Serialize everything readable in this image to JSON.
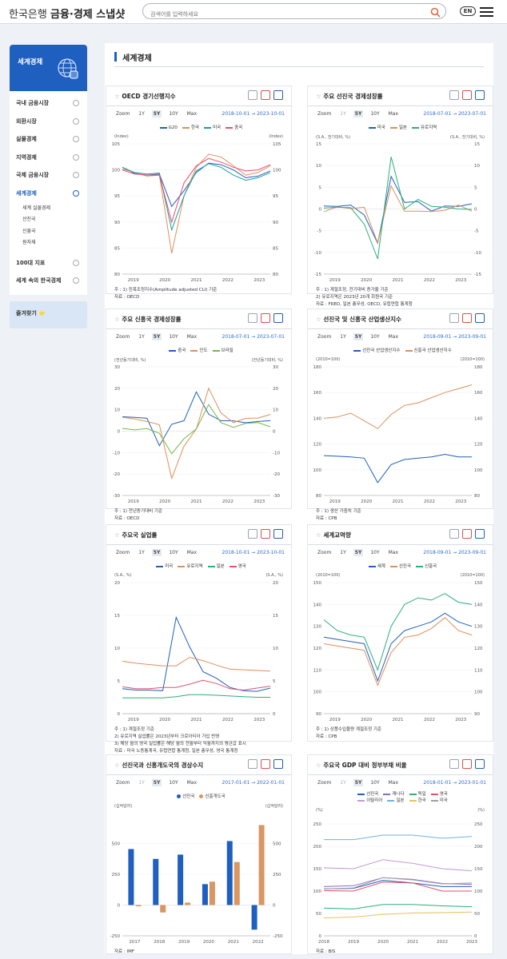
{
  "header": {
    "bank": "한국은행",
    "app": "금융·경제 스냅샷",
    "search_placeholder": "검색어를 입력하세요",
    "lang": "EN"
  },
  "sidebar": {
    "title": "세계경제",
    "items": [
      "국내 금융시장",
      "외환시장",
      "실물경제",
      "지역경제",
      "국제 금융시장",
      "세계경제",
      "100대 지표",
      "세계 속의 한국경제"
    ],
    "active_index": 5,
    "sub_items": [
      "세계 실물경제",
      "선진국",
      "신흥국",
      "원자재"
    ],
    "favorites": "즐겨찾기 ⭐"
  },
  "page_title": "세계경제",
  "colors": {
    "g20": "#1f5fbf",
    "korea": "#e08f5a",
    "us": "#1a9e9e",
    "china": "#e6506e",
    "brazil": "#7ab648",
    "eu": "#2ab07a"
  },
  "cards": [
    {
      "title": "OECD 경기선행지수",
      "tabs": [
        "Zoom",
        "1Y",
        "5Y",
        "10Y",
        "Max"
      ],
      "tab_on": 2,
      "dates": "2018-10-01 → 2023-10-01",
      "legend": [
        "G20",
        "한국",
        "미국",
        "중국"
      ],
      "unit_left": "(Index)",
      "unit_right": "(Index)",
      "notes": [
        "주 : 1) 진폭조정지수(Amplitude adjusted CLI) 기준",
        "자료 : OECD"
      ]
    },
    {
      "title": "주요 선진국 경제성장률",
      "tabs": [
        "Zoom",
        "1Y",
        "5Y",
        "10Y",
        "Max"
      ],
      "tab_on": 2,
      "dates": "2018-07-01 → 2023-07-01",
      "legend": [
        "미국",
        "일본",
        "유로지역"
      ],
      "unit_left": "(S.A., 전기대비, %)",
      "unit_right": "(S.A., 전기대비, %)",
      "notes": [
        "주 : 1) 계절조정, 전기대비 증가율 기준",
        "      2) 유로지역은 2023년 20개 회원국 기준",
        "자료 : FRED, 일본 총무성, OECD, 유럽연합 통계청"
      ]
    },
    {
      "title": "주요 신흥국 경제성장률",
      "tabs": [
        "Zoom",
        "1Y",
        "5Y",
        "10Y",
        "Max"
      ],
      "tab_on": 2,
      "dates": "2018-07-01 → 2023-07-01",
      "legend": [
        "중국",
        "인도",
        "브라질"
      ],
      "unit_left": "(전년동기대비, %)",
      "unit_right": "(전년동기대비, %)",
      "notes": [
        "주 : 1) 전년동기대비 기준",
        "자료 : OECD"
      ]
    },
    {
      "title": "선진국 및 신흥국 산업생산지수",
      "tabs": [
        "Zoom",
        "1Y",
        "5Y",
        "10Y",
        "Max"
      ],
      "tab_on": 2,
      "dates": "2018-09-01 → 2023-09-01",
      "legend": [
        "선진국 산업생산지수",
        "신흥국 산업생산지수"
      ],
      "unit_left": "(2010=100)",
      "unit_right": "(2010=100)",
      "notes": [
        "주 : 1) 생산 가중치 기준",
        "자료 : CPB"
      ]
    },
    {
      "title": "주요국 실업률",
      "tabs": [
        "Zoom",
        "1Y",
        "5Y",
        "10Y",
        "Max"
      ],
      "tab_on": 2,
      "dates": "2018-10-01 → 2023-10-01",
      "legend": [
        "미국",
        "유로지역",
        "일본",
        "영국"
      ],
      "unit_left": "(S.A., %)",
      "unit_right": "(S.A., %)",
      "notes": [
        "주 : 1) 계절조정 기준",
        "      2) 유로지역 실업률은 2023년부터 크로아티아 가입 반영",
        "      3) 해당 월의 영국 실업률은 해당 월의 전월부터 익월까지의 평균값 표시",
        "자료 : 미국 노동통계국, 유럽연합 통계청, 일본 총무성, 영국 통계청"
      ]
    },
    {
      "title": "세계교역량",
      "tabs": [
        "Zoom",
        "1Y",
        "5Y",
        "10Y",
        "Max"
      ],
      "tab_on": 2,
      "dates": "2018-09-01 → 2023-09-01",
      "legend": [
        "세계",
        "선진국",
        "신흥국"
      ],
      "unit_left": "(2010=100)",
      "unit_right": "(2010=100)",
      "notes": [
        "주 : 1) 상품수입물량 계절조정 기준",
        "자료 : CPB"
      ]
    },
    {
      "title": "선진국과 신흥개도국의 경상수지",
      "tabs": [
        "Zoom",
        "1Y",
        "5Y",
        "10Y",
        "Max"
      ],
      "tab_on": 2,
      "dates": "2017-01-01 → 2022-01-01",
      "legend": [
        "선진국",
        "신흥개도국"
      ],
      "unit_left": "(십억달러)",
      "unit_right": "(십억달러)",
      "notes": [
        "자료 : IMF"
      ]
    },
    {
      "title": "주요국 GDP 대비 정부부채 비율",
      "tabs": [
        "Zoom",
        "1Y",
        "5Y",
        "10Y",
        "Max"
      ],
      "tab_on": 2,
      "dates": "2018-01-01 → 2023-01-01",
      "legend": [
        "선진국",
        "캐나다",
        "독일",
        "영국",
        "이탈리아",
        "일본",
        "한국",
        "미국"
      ],
      "unit_left": "(%)",
      "unit_right": "(%)",
      "notes": [
        "자료 : BIS"
      ]
    }
  ],
  "chart_data": [
    {
      "type": "line",
      "title": "OECD 경기선행지수",
      "x": [
        "2018-10",
        "2019-04",
        "2019-10",
        "2020-02",
        "2020-04",
        "2020-06",
        "2020-10",
        "2021-04",
        "2021-10",
        "2022-04",
        "2022-10",
        "2023-04",
        "2023-10"
      ],
      "xticks": [
        "2019",
        "2020",
        "2021",
        "2022",
        "2023"
      ],
      "ylim": [
        80,
        105
      ],
      "yticks": [
        80,
        85,
        90,
        95,
        100,
        105
      ],
      "series": [
        {
          "name": "G20",
          "values": [
            100.5,
            99.3,
            99.0,
            99.2,
            93.0,
            96.0,
            99.5,
            101.3,
            101.0,
            100.0,
            98.5,
            98.8,
            99.8
          ]
        },
        {
          "name": "한국",
          "values": [
            100.2,
            99.5,
            98.8,
            99.0,
            84.0,
            95.0,
            100.5,
            103.0,
            102.5,
            100.8,
            99.0,
            99.5,
            100.8
          ]
        },
        {
          "name": "미국",
          "values": [
            100.5,
            99.5,
            99.2,
            99.4,
            88.5,
            95.0,
            99.8,
            101.2,
            100.5,
            99.0,
            98.0,
            98.5,
            99.5
          ]
        },
        {
          "name": "중국",
          "values": [
            100.0,
            99.2,
            99.0,
            99.0,
            90.0,
            97.5,
            100.8,
            102.2,
            101.5,
            100.5,
            99.8,
            100.0,
            101.0
          ]
        }
      ]
    },
    {
      "type": "line",
      "title": "주요 선진국 경제성장률",
      "x": [
        "2018-07",
        "2019-01",
        "2019-07",
        "2020-01",
        "2020-04",
        "2020-07",
        "2021-01",
        "2021-07",
        "2022-01",
        "2022-07",
        "2023-01",
        "2023-07"
      ],
      "xticks": [
        "2019",
        "2020",
        "2021",
        "2022",
        "2023"
      ],
      "ylim": [
        -15,
        15
      ],
      "yticks": [
        -15,
        -10,
        -5,
        0,
        5,
        10,
        15
      ],
      "series": [
        {
          "name": "미국",
          "values": [
            0.7,
            0.6,
            0.9,
            -1.4,
            -7.9,
            7.5,
            1.5,
            1.7,
            -0.5,
            0.7,
            0.6,
            1.2
          ]
        },
        {
          "name": "일본",
          "values": [
            -0.6,
            0.5,
            0.1,
            0.4,
            -7.8,
            5.3,
            -0.5,
            -0.5,
            -0.6,
            -0.3,
            0.9,
            -0.5
          ]
        },
        {
          "name": "유로지역",
          "values": [
            0.2,
            0.4,
            0.3,
            -3.5,
            -11.5,
            12.0,
            0.0,
            2.2,
            0.6,
            0.4,
            0.0,
            -0.1
          ]
        }
      ]
    },
    {
      "type": "line",
      "title": "주요 신흥국 경제성장률",
      "x": [
        "2018-07",
        "2019-01",
        "2019-07",
        "2020-01",
        "2020-04",
        "2020-07",
        "2021-01",
        "2021-04",
        "2021-07",
        "2022-01",
        "2022-07",
        "2023-01",
        "2023-07"
      ],
      "xticks": [
        "2019",
        "2020",
        "2021",
        "2022",
        "2023"
      ],
      "ylim": [
        -30,
        30
      ],
      "yticks": [
        -30,
        -20,
        -10,
        0,
        10,
        20,
        30
      ],
      "series": [
        {
          "name": "중국",
          "values": [
            6.7,
            6.4,
            6.0,
            -6.8,
            3.2,
            4.9,
            18.3,
            7.9,
            4.9,
            4.8,
            3.9,
            4.5,
            4.9
          ]
        },
        {
          "name": "인도",
          "values": [
            6.5,
            5.7,
            4.5,
            3.0,
            -22.0,
            -7.0,
            1.0,
            20.0,
            8.5,
            4.0,
            6.0,
            6.1,
            7.8
          ]
        },
        {
          "name": "브라질",
          "values": [
            1.3,
            0.6,
            1.2,
            -1.0,
            -10.5,
            -3.5,
            1.0,
            12.4,
            4.0,
            1.8,
            3.6,
            4.0,
            2.0
          ]
        }
      ]
    },
    {
      "type": "line",
      "title": "선진국 및 신흥국 산업생산지수",
      "x": [
        "2018-09",
        "2019-03",
        "2019-09",
        "2020-01",
        "2020-04",
        "2020-07",
        "2021-01",
        "2021-07",
        "2022-01",
        "2022-07",
        "2023-01",
        "2023-09"
      ],
      "xticks": [
        "2019",
        "2020",
        "2021",
        "2022",
        "2023"
      ],
      "ylim": [
        80,
        180
      ],
      "yticks": [
        80,
        100,
        120,
        140,
        160,
        180
      ],
      "series": [
        {
          "name": "선진국 산업생산지수",
          "values": [
            111,
            110.5,
            110,
            109,
            90,
            104,
            108,
            109,
            110,
            112,
            110,
            110
          ]
        },
        {
          "name": "신흥국 산업생산지수",
          "values": [
            140,
            141,
            144,
            138,
            132,
            143,
            150,
            152,
            156,
            160,
            163,
            166
          ]
        }
      ]
    },
    {
      "type": "line",
      "title": "주요국 실업률",
      "x": [
        "2018-10",
        "2019-04",
        "2019-10",
        "2020-02",
        "2020-04",
        "2020-07",
        "2021-01",
        "2021-07",
        "2022-01",
        "2022-07",
        "2023-01",
        "2023-10"
      ],
      "xticks": [
        "2019",
        "2020",
        "2021",
        "2022",
        "2023"
      ],
      "ylim": [
        0,
        20
      ],
      "yticks": [
        0,
        5,
        10,
        15,
        20
      ],
      "series": [
        {
          "name": "미국",
          "values": [
            3.8,
            3.6,
            3.6,
            3.5,
            14.7,
            10.2,
            6.4,
            5.4,
            4.0,
            3.5,
            3.4,
            3.9
          ]
        },
        {
          "name": "유로지역",
          "values": [
            8.0,
            7.7,
            7.5,
            7.3,
            7.3,
            8.6,
            8.1,
            7.4,
            6.8,
            6.7,
            6.6,
            6.5
          ]
        },
        {
          "name": "일본",
          "values": [
            2.4,
            2.4,
            2.4,
            2.4,
            2.6,
            2.9,
            2.9,
            2.8,
            2.7,
            2.6,
            2.5,
            2.5
          ]
        },
        {
          "name": "영국",
          "values": [
            4.1,
            3.8,
            3.8,
            4.0,
            4.0,
            4.5,
            5.1,
            4.6,
            3.8,
            3.6,
            3.9,
            4.2
          ]
        }
      ]
    },
    {
      "type": "line",
      "title": "세계교역량",
      "x": [
        "2018-09",
        "2019-03",
        "2019-09",
        "2020-01",
        "2020-05",
        "2020-09",
        "2021-03",
        "2021-09",
        "2022-03",
        "2022-09",
        "2023-03",
        "2023-09"
      ],
      "xticks": [
        "2019",
        "2020",
        "2021",
        "2022",
        "2023"
      ],
      "ylim": [
        90,
        150
      ],
      "yticks": [
        90,
        100,
        110,
        120,
        130,
        140,
        150
      ],
      "series": [
        {
          "name": "세계",
          "values": [
            125,
            124,
            123,
            122,
            105,
            122,
            128,
            130,
            132,
            136,
            132,
            130
          ]
        },
        {
          "name": "선진국",
          "values": [
            122,
            121,
            120,
            119,
            103,
            118,
            125,
            126,
            129,
            134,
            128,
            126
          ]
        },
        {
          "name": "신흥국",
          "values": [
            133,
            128,
            126,
            125,
            110,
            130,
            140,
            143,
            142,
            145,
            141,
            140
          ]
        }
      ]
    },
    {
      "type": "bar",
      "title": "선진국과 신흥개도국의 경상수지",
      "categories": [
        "2017",
        "2018",
        "2019",
        "2020",
        "2021",
        "2022"
      ],
      "ylim": [
        -250,
        750
      ],
      "yticks": [
        -250,
        0,
        250,
        500
      ],
      "series": [
        {
          "name": "선진국",
          "values": [
            455,
            375,
            410,
            170,
            520,
            -200
          ]
        },
        {
          "name": "신흥개도국",
          "values": [
            -10,
            -60,
            20,
            190,
            350,
            650
          ]
        }
      ]
    },
    {
      "type": "line",
      "title": "주요국 GDP 대비 정부부채 비율",
      "x": [
        "2018",
        "2019",
        "2020",
        "2021",
        "2022",
        "2023"
      ],
      "xticks": [
        "2018",
        "2019",
        "2020",
        "2021",
        "2022",
        "2023"
      ],
      "ylim": [
        0,
        275
      ],
      "yticks": [
        0,
        50,
        100,
        150,
        200,
        250
      ],
      "series": [
        {
          "name": "선진국",
          "values": [
            105,
            106,
            124,
            118,
            110,
            110
          ]
        },
        {
          "name": "캐나다",
          "values": [
            110,
            112,
            130,
            126,
            117,
            115
          ]
        },
        {
          "name": "독일",
          "values": [
            62,
            60,
            70,
            70,
            67,
            65
          ]
        },
        {
          "name": "영국",
          "values": [
            101,
            100,
            120,
            118,
            100,
            100
          ]
        },
        {
          "name": "이탈리아",
          "values": [
            152,
            150,
            170,
            162,
            150,
            145
          ]
        },
        {
          "name": "일본",
          "values": [
            215,
            215,
            225,
            225,
            218,
            222
          ]
        },
        {
          "name": "한국",
          "values": [
            40,
            42,
            48,
            51,
            52,
            53
          ]
        },
        {
          "name": "미국",
          "values": [
            105,
            107,
            130,
            125,
            116,
            118
          ]
        }
      ]
    }
  ]
}
